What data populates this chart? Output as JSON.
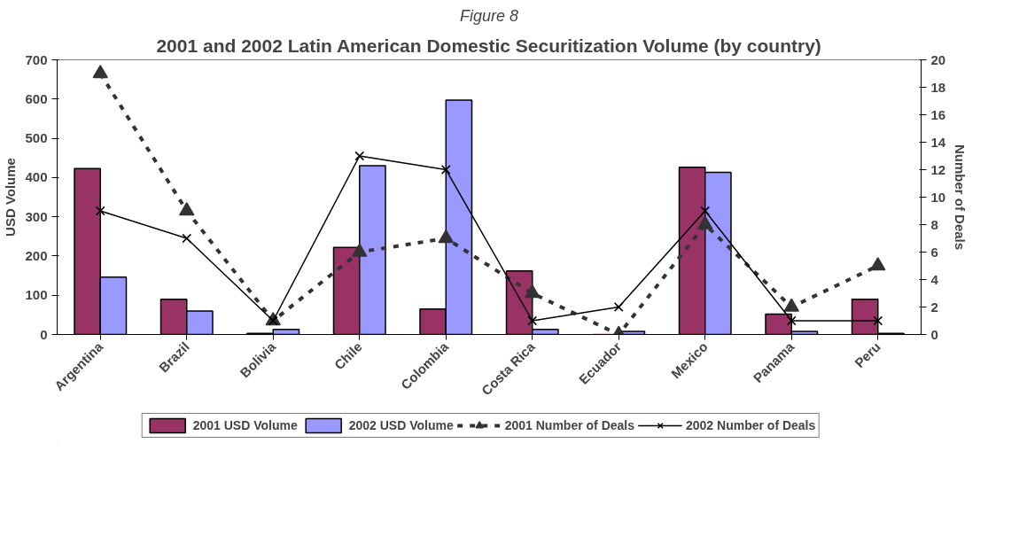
{
  "chart_data": {
    "type": "bar",
    "subtitle": "Figure 8",
    "title": "2001 and 2002 Latin American Domestic Securitization Volume (by country)",
    "categories": [
      "Argentina",
      "Brazil",
      "Bolivia",
      "Chile",
      "Colombia",
      "Costa Rica",
      "Ecuador",
      "Mexico",
      "Panama",
      "Peru"
    ],
    "ylabel": "USD Volume",
    "y2label": "Number of Deals",
    "ylim": [
      0,
      700
    ],
    "yticks": [
      0,
      100,
      200,
      300,
      400,
      500,
      600,
      700
    ],
    "y2lim": [
      0,
      20
    ],
    "y2ticks": [
      0,
      2,
      4,
      6,
      8,
      10,
      12,
      14,
      16,
      18,
      20
    ],
    "grid": false,
    "legend": "bottom",
    "series": [
      {
        "name": "2001 USD Volume",
        "color": "#993366",
        "values": [
          423,
          90,
          3,
          222,
          65,
          162,
          0,
          426,
          52,
          90
        ]
      },
      {
        "name": "2002 USD Volume",
        "color": "#9999ff",
        "values": [
          146,
          60,
          13,
          430,
          597,
          13,
          8,
          413,
          8,
          3
        ]
      },
      {
        "name": "2001 Number of Deals",
        "type": "line",
        "axis": "y2",
        "color": "#333333",
        "marker": "triangle",
        "line_style": "dashed",
        "values": [
          19,
          9,
          1,
          6,
          7,
          3,
          0,
          8,
          2,
          5
        ]
      },
      {
        "name": "2002 Number of Deals",
        "type": "line",
        "axis": "y2",
        "color": "#000000",
        "marker": "cross",
        "line_style": "solid",
        "values": [
          9,
          7,
          1,
          13,
          12,
          1,
          2,
          9,
          1,
          1
        ]
      }
    ]
  }
}
